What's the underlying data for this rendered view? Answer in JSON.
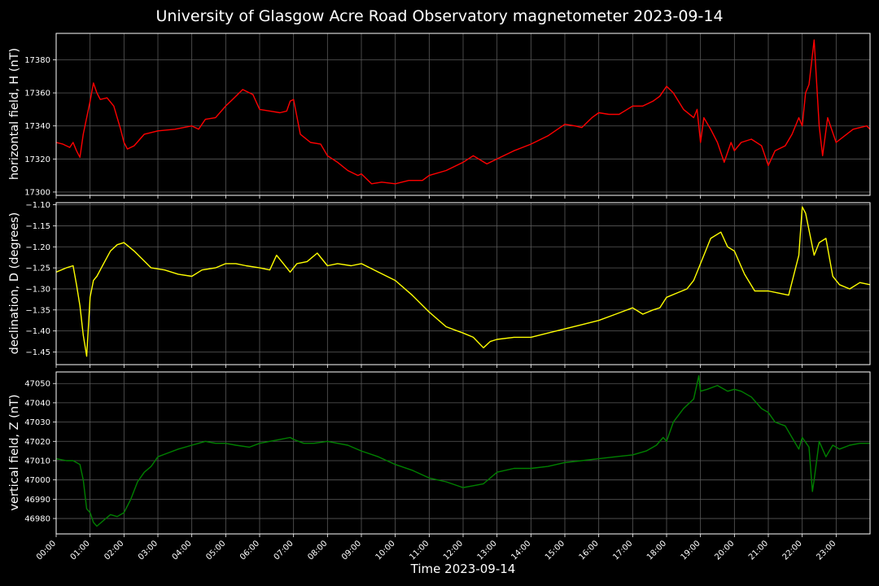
{
  "title": "University of Glasgow Acre Road Observatory magnetometer 2023-09-14",
  "chart_data": {
    "type": "line",
    "title": "University of Glasgow Acre Road Observatory magnetometer 2023-09-14",
    "xlabel": "Time 2023-09-14",
    "x_unit": "hours",
    "x_tick_labels": [
      "00:00",
      "01:00",
      "02:00",
      "03:00",
      "04:00",
      "05:00",
      "06:00",
      "07:00",
      "08:00",
      "09:00",
      "10:00",
      "11:00",
      "12:00",
      "13:00",
      "14:00",
      "15:00",
      "16:00",
      "17:00",
      "18:00",
      "19:00",
      "20:00",
      "21:00",
      "22:00",
      "23:00"
    ],
    "xlim": [
      0,
      24
    ],
    "grid": true,
    "panels": [
      {
        "name": "horizontal field, H (nT)",
        "ylabel": "horizontal field, H (nT)",
        "color": "#ff0000",
        "ylim": [
          17298,
          17396
        ],
        "yticks": [
          17300,
          17320,
          17340,
          17360,
          17380
        ],
        "x": [
          0,
          0.2,
          0.4,
          0.5,
          0.6,
          0.7,
          0.8,
          0.9,
          1.0,
          1.1,
          1.2,
          1.3,
          1.5,
          1.7,
          1.9,
          2.0,
          2.1,
          2.3,
          2.6,
          3.0,
          3.5,
          4.0,
          4.2,
          4.4,
          4.7,
          5.0,
          5.2,
          5.5,
          5.8,
          6.0,
          6.3,
          6.6,
          6.8,
          6.9,
          7.0,
          7.2,
          7.5,
          7.8,
          8.0,
          8.3,
          8.6,
          8.9,
          9.0,
          9.3,
          9.6,
          10.0,
          10.4,
          10.8,
          11.0,
          11.5,
          12.0,
          12.3,
          12.7,
          13.0,
          13.5,
          14.0,
          14.5,
          15.0,
          15.3,
          15.5,
          15.8,
          16.0,
          16.3,
          16.6,
          17.0,
          17.3,
          17.6,
          17.8,
          18.0,
          18.2,
          18.5,
          18.8,
          18.9,
          19.0,
          19.1,
          19.3,
          19.5,
          19.7,
          19.9,
          20.0,
          20.2,
          20.5,
          20.8,
          21.0,
          21.2,
          21.5,
          21.7,
          21.9,
          22.0,
          22.1,
          22.2,
          22.35,
          22.5,
          22.6,
          22.75,
          23.0,
          23.5,
          23.9,
          24.0
        ],
        "y": [
          17330,
          17329,
          17327,
          17330,
          17325,
          17321,
          17335,
          17345,
          17355,
          17366,
          17360,
          17356,
          17357,
          17352,
          17338,
          17330,
          17326,
          17328,
          17335,
          17337,
          17338,
          17340,
          17338,
          17344,
          17345,
          17352,
          17356,
          17362,
          17359,
          17350,
          17349,
          17348,
          17349,
          17355,
          17356,
          17335,
          17330,
          17329,
          17322,
          17318,
          17313,
          17310,
          17311,
          17305,
          17306,
          17305,
          17307,
          17307,
          17310,
          17313,
          17318,
          17322,
          17317,
          17320,
          17325,
          17329,
          17334,
          17341,
          17340,
          17339,
          17345,
          17348,
          17347,
          17347,
          17352,
          17352,
          17355,
          17358,
          17364,
          17360,
          17350,
          17345,
          17350,
          17330,
          17345,
          17338,
          17330,
          17318,
          17330,
          17325,
          17330,
          17332,
          17328,
          17316,
          17325,
          17328,
          17335,
          17345,
          17340,
          17360,
          17365,
          17392,
          17340,
          17322,
          17345,
          17330,
          17338,
          17340,
          17338
        ]
      },
      {
        "name": "declination, D (degrees)",
        "ylabel": "declination, D (degrees)",
        "color": "#ffff00",
        "ylim": [
          -1.48,
          -1.095
        ],
        "yticks": [
          -1.45,
          -1.4,
          -1.35,
          -1.3,
          -1.25,
          -1.2,
          -1.15,
          -1.1
        ],
        "ytick_labels": [
          "−1.45",
          "−1.40",
          "−1.35",
          "−1.30",
          "−1.25",
          "−1.20",
          "−1.15",
          "−1.10"
        ],
        "x": [
          0,
          0.3,
          0.5,
          0.6,
          0.7,
          0.8,
          0.9,
          1.0,
          1.1,
          1.2,
          1.4,
          1.6,
          1.8,
          2.0,
          2.3,
          2.8,
          3.2,
          3.6,
          4.0,
          4.3,
          4.7,
          5.0,
          5.3,
          5.6,
          6.0,
          6.3,
          6.5,
          6.7,
          6.9,
          7.1,
          7.4,
          7.7,
          8.0,
          8.3,
          8.7,
          9.0,
          9.5,
          10.0,
          10.5,
          11.0,
          11.5,
          12.0,
          12.3,
          12.6,
          12.8,
          13.0,
          13.5,
          14.0,
          14.5,
          15.0,
          15.5,
          16.0,
          16.5,
          17.0,
          17.3,
          17.6,
          17.8,
          18.0,
          18.3,
          18.6,
          18.8,
          19.0,
          19.3,
          19.6,
          19.8,
          20.0,
          20.3,
          20.6,
          21.0,
          21.3,
          21.6,
          21.9,
          22.0,
          22.1,
          22.2,
          22.35,
          22.5,
          22.7,
          22.9,
          23.1,
          23.4,
          23.7,
          24.0
        ],
        "y": [
          -1.26,
          -1.25,
          -1.245,
          -1.29,
          -1.34,
          -1.41,
          -1.46,
          -1.32,
          -1.28,
          -1.27,
          -1.24,
          -1.21,
          -1.195,
          -1.19,
          -1.21,
          -1.25,
          -1.255,
          -1.265,
          -1.27,
          -1.255,
          -1.25,
          -1.24,
          -1.24,
          -1.245,
          -1.25,
          -1.255,
          -1.22,
          -1.24,
          -1.26,
          -1.24,
          -1.235,
          -1.215,
          -1.245,
          -1.24,
          -1.245,
          -1.24,
          -1.26,
          -1.28,
          -1.315,
          -1.355,
          -1.39,
          -1.405,
          -1.415,
          -1.44,
          -1.425,
          -1.42,
          -1.415,
          -1.415,
          -1.405,
          -1.395,
          -1.385,
          -1.375,
          -1.36,
          -1.345,
          -1.36,
          -1.35,
          -1.345,
          -1.32,
          -1.31,
          -1.3,
          -1.28,
          -1.24,
          -1.18,
          -1.165,
          -1.2,
          -1.21,
          -1.265,
          -1.305,
          -1.305,
          -1.31,
          -1.315,
          -1.22,
          -1.105,
          -1.12,
          -1.16,
          -1.22,
          -1.19,
          -1.18,
          -1.27,
          -1.29,
          -1.3,
          -1.285,
          -1.29
        ]
      },
      {
        "name": "vertical field, Z (nT)",
        "ylabel": "vertical field, Z (nT)",
        "color": "#008000",
        "ylim": [
          46972,
          47056
        ],
        "yticks": [
          46980,
          46990,
          47000,
          47010,
          47020,
          47030,
          47040,
          47050
        ],
        "x": [
          0,
          0.3,
          0.5,
          0.7,
          0.8,
          0.9,
          1.0,
          1.1,
          1.2,
          1.4,
          1.6,
          1.8,
          2.0,
          2.2,
          2.4,
          2.6,
          2.8,
          3.0,
          3.3,
          3.6,
          4.0,
          4.2,
          4.4,
          4.7,
          5.0,
          5.3,
          5.7,
          6.0,
          6.3,
          6.6,
          6.9,
          7.0,
          7.3,
          7.6,
          8.0,
          8.3,
          8.6,
          9.0,
          9.5,
          10.0,
          10.5,
          11.0,
          11.5,
          12.0,
          12.3,
          12.6,
          13.0,
          13.5,
          14.0,
          14.5,
          15.0,
          15.5,
          16.0,
          16.5,
          17.0,
          17.4,
          17.7,
          17.9,
          18.0,
          18.2,
          18.5,
          18.8,
          18.95,
          19.0,
          19.2,
          19.5,
          19.8,
          20.0,
          20.2,
          20.5,
          20.8,
          21.0,
          21.2,
          21.5,
          21.8,
          21.9,
          22.0,
          22.2,
          22.3,
          22.35,
          22.5,
          22.7,
          22.9,
          23.1,
          23.4,
          23.7,
          24.0
        ],
        "y": [
          47011,
          47010,
          47010,
          47008,
          47000,
          46985,
          46983,
          46978,
          46976,
          46979,
          46982,
          46981,
          46983,
          46990,
          46999,
          47004,
          47007,
          47012,
          47014,
          47016,
          47018,
          47019,
          47020,
          47019,
          47019,
          47018,
          47017,
          47019,
          47020,
          47021,
          47022,
          47021,
          47019,
          47019,
          47020,
          47019,
          47018,
          47015,
          47012,
          47008,
          47005,
          47001,
          46999,
          46996,
          46997,
          46998,
          47004,
          47006,
          47006,
          47007,
          47009,
          47010,
          47011,
          47012,
          47013,
          47015,
          47018,
          47022,
          47020,
          47030,
          47037,
          47042,
          47054,
          47046,
          47047,
          47049,
          47046,
          47047,
          47046,
          47043,
          47037,
          47035,
          47030,
          47028,
          47019,
          47016,
          47022,
          47017,
          46994,
          47000,
          47020,
          47012,
          47018,
          47016,
          47018,
          47019,
          47019
        ]
      }
    ]
  }
}
